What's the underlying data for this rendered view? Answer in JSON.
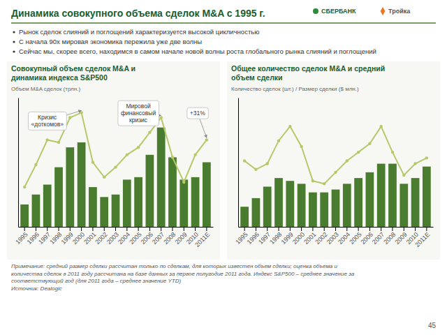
{
  "title": "Динамика совокупного объема сделок M&A с 1995 г.",
  "logos": [
    "СБЕРБАНК",
    "Тройка"
  ],
  "bullets": [
    "Рынок сделок слияний и поглощений характеризуется высокой цикличностью",
    "С начала 90х мировая экономика пережила уже две волны",
    "Сейчас мы, скорее всего, находимся в самом начале новой волны роста глобального рынка слияний и поглощений"
  ],
  "chart_data": [
    {
      "type": "bar",
      "title": "Совокупный объем сделок M&A и\nдинамика индекса S&P500",
      "ylabel": "Объем M&A сделок (трлн.)",
      "categories": [
        "1995",
        "1996",
        "1997",
        "1998",
        "1999",
        "2000",
        "2001",
        "2002",
        "2003",
        "2004",
        "2005",
        "2006",
        "2007",
        "2008",
        "2009",
        "2010",
        "2011Е"
      ],
      "series": [
        {
          "type": "bar",
          "color": "#4a7c2f",
          "values": [
            0.9,
            1.3,
            1.7,
            2.4,
            3.2,
            3.4,
            1.6,
            1.2,
            1.3,
            1.9,
            2.0,
            2.9,
            4.0,
            2.8,
            1.9,
            2.0,
            2.6
          ]
        },
        {
          "type": "line",
          "color": "#b5c96a",
          "marker": "circle",
          "values": [
            1.6,
            2.5,
            3.5,
            3.4,
            4.4,
            4.6,
            2.6,
            2.0,
            2.4,
            2.9,
            3.2,
            3.8,
            4.4,
            2.8,
            1.8,
            2.9,
            3.5
          ]
        }
      ],
      "ylim": [
        0,
        5.2
      ],
      "tick_labels": "x",
      "annotations": [
        {
          "text": "Кризис\n«доткомов»",
          "x": "2000"
        },
        {
          "text": "Мировой\nфинансовый\nкризис",
          "x": "2007"
        },
        {
          "text": "+31%",
          "x": "2011Е"
        }
      ]
    },
    {
      "type": "bar",
      "title": "Общее количество сделок M&A и средний\nобъем сделки",
      "ylabel": "Количество сделок (шт.) / Размер сделки ($ млн.)",
      "categories": [
        "1995",
        "1996",
        "1997",
        "1998",
        "1999",
        "2000",
        "2001",
        "2002",
        "2003",
        "2004",
        "2005",
        "2006",
        "2007",
        "2008",
        "2009",
        "2010",
        "2011Е"
      ],
      "series": [
        {
          "type": "bar",
          "color": "#4a7c2f",
          "values": [
            0.7,
            1.0,
            1.4,
            1.7,
            1.6,
            1.5,
            1.2,
            1.2,
            1.3,
            1.5,
            1.7,
            1.9,
            2.2,
            2.2,
            1.5,
            1.7,
            2.1
          ]
        },
        {
          "type": "line",
          "color": "#b5c96a",
          "marker": "circle",
          "values": [
            2.3,
            2.0,
            2.2,
            3.0,
            3.5,
            2.8,
            1.6,
            1.5,
            1.9,
            2.3,
            2.6,
            2.9,
            3.5,
            2.6,
            1.8,
            2.2,
            2.4
          ]
        }
      ],
      "ylim": [
        0,
        4.5
      ],
      "tick_labels": "x"
    }
  ],
  "note": "Примечание: средний размер сделки рассчитан только по сделкам, для которых известен объем сделки; оценка объема и\nколичества сделок в 2011 году рассчитана на базе данных за первое полугодие 2011 года. Индекс S&P500 – среднее значение за\nсоответствующий год (для 2011 года – среднее значение YTD)\nИсточник: Dealogic",
  "page_number": "45"
}
